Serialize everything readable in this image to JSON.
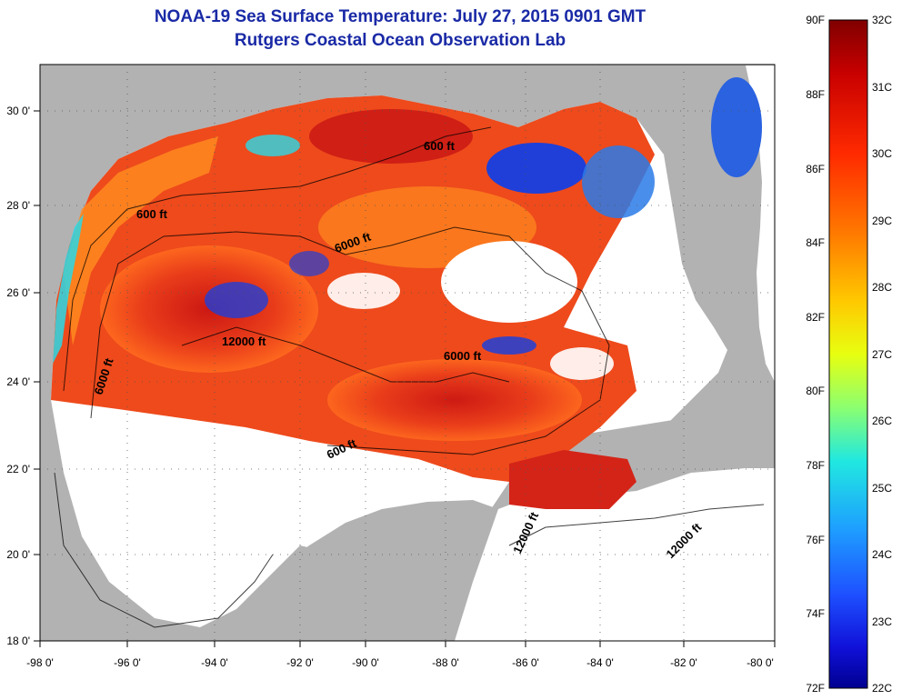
{
  "title": {
    "line1": "NOAA-19 Sea Surface Temperature:  July 27, 2015 0901 GMT",
    "line2": "Rutgers Coastal Ocean Observation Lab"
  },
  "map": {
    "lon_ticks": [
      "-98 0'",
      "-96 0'",
      "-94 0'",
      "-92 0'",
      "-90 0'",
      "-88 0'",
      "-86 0'",
      "-84 0'",
      "-82 0'",
      "-80 0'"
    ],
    "lat_ticks": [
      "18 0'",
      "20 0'",
      "22 0'",
      "24 0'",
      "26 0'",
      "28 0'",
      "30 0'"
    ],
    "contour_labels": [
      "600 ft",
      "600 ft",
      "6000 ft",
      "12000 ft",
      "6000 ft",
      "6000 ft",
      "600 ft",
      "12000 ft",
      "12000 ft"
    ],
    "colors": {
      "land": "#b2b2b2",
      "no_data": "#ffffff",
      "warm": "#e8301a",
      "hot": "#b81010",
      "mid": "#ff8a1e",
      "cool": "#1f3fd8",
      "cyan": "#29d9e8"
    }
  },
  "colorbar": {
    "f_labels": [
      "90F",
      "88F",
      "86F",
      "84F",
      "82F",
      "80F",
      "78F",
      "76F",
      "74F",
      "72F"
    ],
    "c_labels": [
      "32C",
      "31C",
      "30C",
      "29C",
      "28C",
      "27C",
      "26C",
      "25C",
      "24C",
      "23C",
      "22C"
    ],
    "range_f": [
      72,
      90
    ],
    "range_c": [
      22,
      32
    ],
    "colors": [
      "#800000",
      "#c80000",
      "#ff2a00",
      "#ff7a00",
      "#ffc800",
      "#e8ff10",
      "#8cff70",
      "#20e8e0",
      "#1ea0ff",
      "#1e50ff",
      "#1010d8",
      "#000090"
    ]
  }
}
